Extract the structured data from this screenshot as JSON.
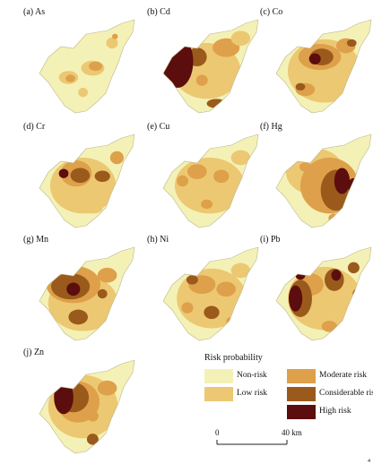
{
  "categories": {
    "non": {
      "label": "Non-risk",
      "color": "#f4f1b6"
    },
    "low": {
      "label": "Low risk",
      "color": "#ecc872"
    },
    "mod": {
      "label": "Moderate risk",
      "color": "#dea04a"
    },
    "con": {
      "label": "Considerable risk",
      "color": "#9a5a1c"
    },
    "high": {
      "label": "High risk",
      "color": "#5c0d0d"
    }
  },
  "panels": [
    {
      "label": "(a) As",
      "blobs": [
        [
          "low",
          0.55,
          0.52,
          0.12,
          0.08
        ],
        [
          "mod",
          0.58,
          0.5,
          0.07,
          0.05
        ],
        [
          "low",
          0.3,
          0.62,
          0.1,
          0.07
        ],
        [
          "mod",
          0.32,
          0.63,
          0.05,
          0.04
        ],
        [
          "low",
          0.75,
          0.25,
          0.06,
          0.06
        ],
        [
          "mod",
          0.78,
          0.18,
          0.03,
          0.03
        ],
        [
          "low",
          0.45,
          0.78,
          0.05,
          0.05
        ]
      ]
    },
    {
      "label": "(b) Cd",
      "blobs": [
        [
          "low",
          0.45,
          0.55,
          0.35,
          0.3
        ],
        [
          "mod",
          0.65,
          0.3,
          0.14,
          0.1
        ],
        [
          "con",
          0.35,
          0.4,
          0.1,
          0.1
        ],
        [
          "high",
          0.15,
          0.45,
          0.16,
          0.28
        ],
        [
          "con",
          0.55,
          0.9,
          0.1,
          0.05
        ],
        [
          "mod",
          0.4,
          0.65,
          0.06,
          0.06
        ],
        [
          "low",
          0.8,
          0.2,
          0.1,
          0.08
        ]
      ]
    },
    {
      "label": "(c) Co",
      "blobs": [
        [
          "low",
          0.5,
          0.55,
          0.38,
          0.34
        ],
        [
          "mod",
          0.45,
          0.4,
          0.22,
          0.14
        ],
        [
          "con",
          0.47,
          0.4,
          0.12,
          0.09
        ],
        [
          "high",
          0.4,
          0.42,
          0.06,
          0.06
        ],
        [
          "mod",
          0.72,
          0.28,
          0.1,
          0.08
        ],
        [
          "con",
          0.78,
          0.25,
          0.05,
          0.04
        ],
        [
          "mod",
          0.3,
          0.75,
          0.1,
          0.07
        ],
        [
          "con",
          0.25,
          0.72,
          0.05,
          0.04
        ],
        [
          "mod",
          0.85,
          0.55,
          0.05,
          0.06
        ]
      ]
    },
    {
      "label": "(d) Cr",
      "blobs": [
        [
          "low",
          0.45,
          0.55,
          0.34,
          0.3
        ],
        [
          "mod",
          0.38,
          0.42,
          0.16,
          0.14
        ],
        [
          "con",
          0.42,
          0.44,
          0.1,
          0.08
        ],
        [
          "high",
          0.25,
          0.42,
          0.05,
          0.05
        ],
        [
          "con",
          0.65,
          0.45,
          0.08,
          0.06
        ],
        [
          "mod",
          0.8,
          0.25,
          0.07,
          0.07
        ],
        [
          "low",
          0.55,
          0.8,
          0.1,
          0.05
        ]
      ]
    },
    {
      "label": "(e) Cu",
      "blobs": [
        [
          "low",
          0.48,
          0.55,
          0.36,
          0.3
        ],
        [
          "mod",
          0.35,
          0.4,
          0.1,
          0.08
        ],
        [
          "mod",
          0.6,
          0.45,
          0.08,
          0.07
        ],
        [
          "mod",
          0.2,
          0.5,
          0.06,
          0.06
        ],
        [
          "low",
          0.8,
          0.25,
          0.1,
          0.08
        ],
        [
          "mod",
          0.45,
          0.75,
          0.06,
          0.05
        ]
      ]
    },
    {
      "label": "(f) Hg",
      "blobs": [
        [
          "low",
          0.4,
          0.4,
          0.3,
          0.25
        ],
        [
          "mod",
          0.55,
          0.55,
          0.3,
          0.3
        ],
        [
          "con",
          0.62,
          0.6,
          0.16,
          0.22
        ],
        [
          "high",
          0.68,
          0.5,
          0.08,
          0.14
        ],
        [
          "high",
          0.8,
          0.55,
          0.06,
          0.08
        ],
        [
          "mod",
          0.3,
          0.35,
          0.06,
          0.05
        ],
        [
          "mod",
          0.6,
          0.9,
          0.06,
          0.05
        ]
      ]
    },
    {
      "label": "(g) Mn",
      "blobs": [
        [
          "low",
          0.45,
          0.6,
          0.36,
          0.3
        ],
        [
          "mod",
          0.35,
          0.4,
          0.28,
          0.2
        ],
        [
          "con",
          0.32,
          0.42,
          0.2,
          0.14
        ],
        [
          "high",
          0.35,
          0.45,
          0.07,
          0.07
        ],
        [
          "mod",
          0.7,
          0.3,
          0.1,
          0.08
        ],
        [
          "con",
          0.4,
          0.75,
          0.1,
          0.08
        ],
        [
          "con",
          0.65,
          0.5,
          0.05,
          0.05
        ]
      ]
    },
    {
      "label": "(h) Ni",
      "blobs": [
        [
          "low",
          0.5,
          0.55,
          0.36,
          0.32
        ],
        [
          "mod",
          0.4,
          0.4,
          0.14,
          0.1
        ],
        [
          "con",
          0.3,
          0.35,
          0.06,
          0.05
        ],
        [
          "mod",
          0.65,
          0.45,
          0.1,
          0.08
        ],
        [
          "con",
          0.5,
          0.7,
          0.08,
          0.07
        ],
        [
          "mod",
          0.25,
          0.65,
          0.06,
          0.06
        ],
        [
          "low",
          0.8,
          0.25,
          0.1,
          0.08
        ],
        [
          "mod",
          0.7,
          0.8,
          0.05,
          0.05
        ]
      ]
    },
    {
      "label": "(i) Pb",
      "blobs": [
        [
          "low",
          0.5,
          0.55,
          0.38,
          0.34
        ],
        [
          "mod",
          0.35,
          0.4,
          0.14,
          0.12
        ],
        [
          "con",
          0.25,
          0.55,
          0.12,
          0.2
        ],
        [
          "high",
          0.2,
          0.55,
          0.07,
          0.14
        ],
        [
          "high",
          0.25,
          0.3,
          0.05,
          0.05
        ],
        [
          "con",
          0.6,
          0.35,
          0.1,
          0.12
        ],
        [
          "high",
          0.62,
          0.3,
          0.05,
          0.06
        ],
        [
          "con",
          0.8,
          0.22,
          0.06,
          0.06
        ],
        [
          "mod",
          0.55,
          0.85,
          0.08,
          0.06
        ],
        [
          "con",
          0.85,
          0.5,
          0.06,
          0.06
        ]
      ]
    },
    {
      "label": "(j) Zn",
      "blobs": [
        [
          "low",
          0.45,
          0.5,
          0.36,
          0.34
        ],
        [
          "mod",
          0.4,
          0.45,
          0.22,
          0.22
        ],
        [
          "con",
          0.35,
          0.4,
          0.16,
          0.16
        ],
        [
          "high",
          0.25,
          0.4,
          0.1,
          0.18
        ],
        [
          "mod",
          0.7,
          0.3,
          0.1,
          0.08
        ],
        [
          "con",
          0.55,
          0.85,
          0.06,
          0.06
        ],
        [
          "mod",
          0.55,
          0.6,
          0.06,
          0.06
        ]
      ]
    }
  ],
  "legend": {
    "title": "Risk probability",
    "order": [
      "non",
      "mod",
      "low",
      "con",
      "high"
    ]
  },
  "scalebar": {
    "zero": "0",
    "km": "40 km"
  },
  "corner_mark": "4"
}
